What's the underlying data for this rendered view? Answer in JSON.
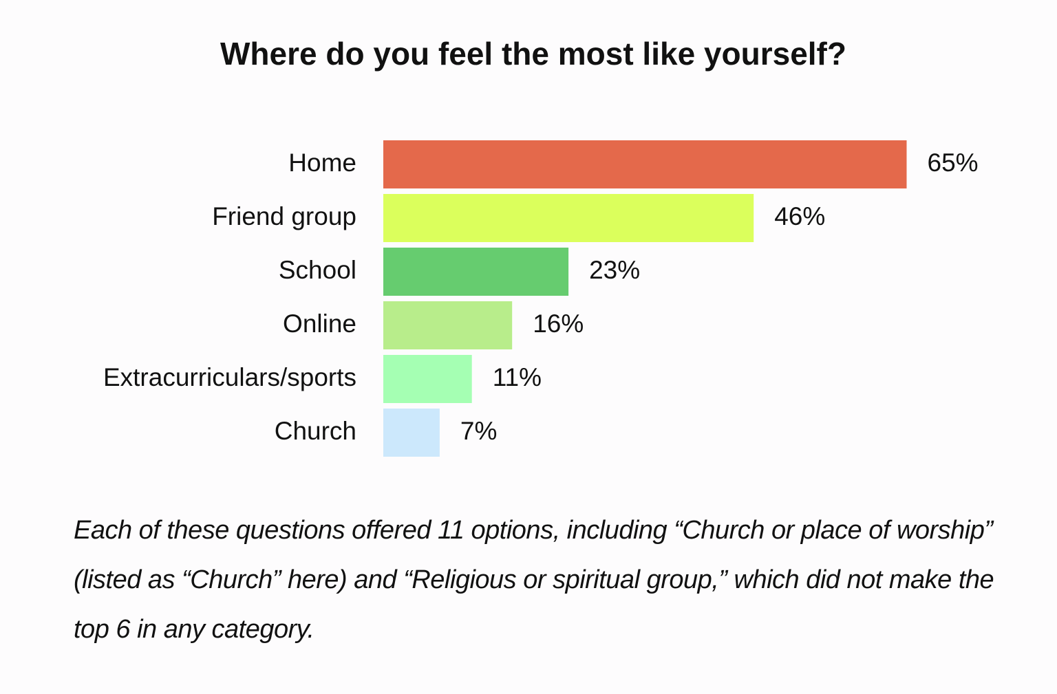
{
  "chart_data": {
    "type": "hbar",
    "title": "Where do you feel the most like yourself?",
    "categories": [
      "Home",
      "Friend group",
      "School",
      "Online",
      "Extracurriculars/sports",
      "Church"
    ],
    "values": [
      65,
      46,
      23,
      16,
      11,
      7
    ],
    "value_labels": [
      "65%",
      "46%",
      "23%",
      "16%",
      "11%",
      "7%"
    ],
    "colors": [
      "#e4694b",
      "#dbff5c",
      "#66cc6f",
      "#b8ed8b",
      "#a5ffb3",
      "#cce8fc"
    ],
    "note": "Each of these questions offered 11 options, including “Church or place of worship” (listed as “Church” here) and “Religious or spiritual group,” which did not make the top 6 in any category."
  }
}
